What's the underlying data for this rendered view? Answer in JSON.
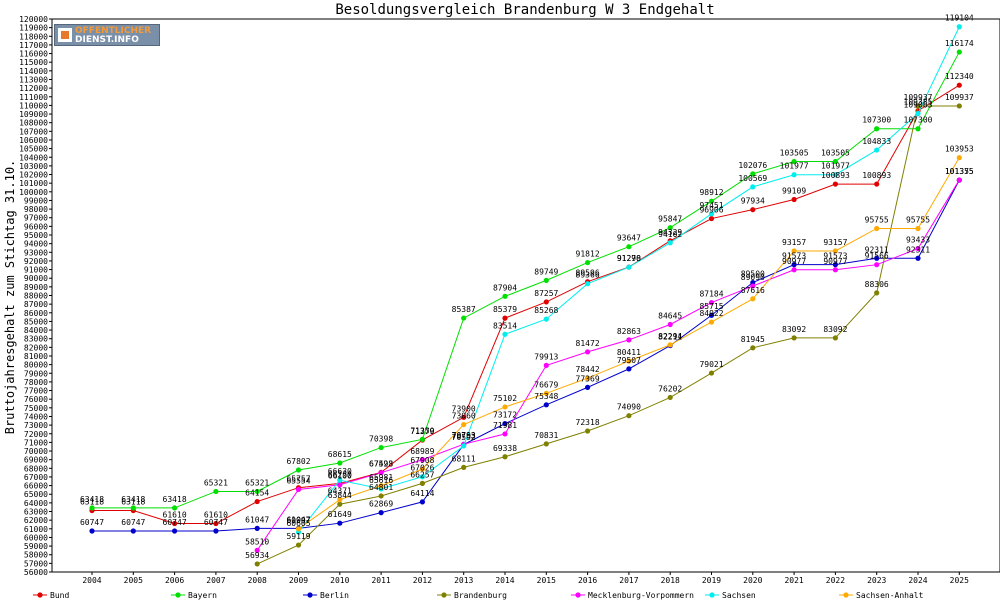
{
  "logo": {
    "line1": "OFFENTLICHER",
    "line2": "DIENST.INFO"
  },
  "chart_data": {
    "type": "line",
    "title": "Besoldungsvergleich Brandenburg W 3 Endgehalt",
    "xlabel": "",
    "ylabel": "Bruttojahresgehalt zum Stichtag 31.10.",
    "ylim": [
      56000,
      120000
    ],
    "ytick_step": 1000,
    "grid": false,
    "legend_position": "bottom",
    "x": [
      2004,
      2005,
      2006,
      2007,
      2008,
      2009,
      2010,
      2011,
      2012,
      2013,
      2014,
      2015,
      2016,
      2017,
      2018,
      2019,
      2020,
      2021,
      2022,
      2023,
      2024,
      2025
    ],
    "series": [
      {
        "name": "Bund",
        "color": "#e00000",
        "values": [
          63118,
          63118,
          61610,
          61610,
          64154,
          65757,
          66250,
          67528,
          71279,
          73900,
          85379,
          87257,
          89596,
          91290,
          94329,
          96906,
          97934,
          99109,
          100893,
          100893,
          109385,
          112340
        ]
      },
      {
        "name": "Bayern",
        "color": "#00e000",
        "values": [
          63418,
          63418,
          63418,
          65321,
          65321,
          67802,
          68615,
          70398,
          71350,
          85387,
          87904,
          89749,
          91812,
          93647,
          95847,
          98912,
          102076,
          103505,
          103505,
          107300,
          107300,
          116174
        ]
      },
      {
        "name": "Berlin",
        "color": "#0000cc",
        "values": [
          60747,
          60747,
          60747,
          60747,
          61047,
          61047,
          61649,
          62869,
          64114,
          70753,
          73172,
          75348,
          77369,
          79507,
          82211,
          85715,
          89500,
          91573,
          91573,
          92311,
          92311,
          101355
        ]
      },
      {
        "name": "Brandenburg",
        "color": "#808000",
        "values": [
          null,
          null,
          null,
          null,
          56934,
          59119,
          63844,
          64801,
          66257,
          68111,
          69338,
          70831,
          72318,
          74090,
          76202,
          79021,
          81945,
          83092,
          83092,
          88306,
          109937,
          109937
        ]
      },
      {
        "name": "Mecklenburg-Vorpommern",
        "color": "#ff00ff",
        "values": [
          null,
          null,
          null,
          null,
          58510,
          65554,
          66100,
          67493,
          68989,
          70793,
          71981,
          79913,
          81472,
          82863,
          84645,
          87184,
          89090,
          90977,
          90977,
          91566,
          93433,
          101375
        ]
      },
      {
        "name": "Sachsen",
        "color": "#00eeee",
        "values": [
          null,
          null,
          null,
          null,
          null,
          60605,
          66630,
          65616,
          67026,
          70592,
          83514,
          85268,
          89366,
          91278,
          94102,
          97451,
          100569,
          101977,
          101977,
          104833,
          109063,
          119104
        ]
      },
      {
        "name": "Sachsen-Anhalt",
        "color": "#ffaa00",
        "values": [
          null,
          null,
          null,
          null,
          null,
          60997,
          64371,
          65981,
          67908,
          73060,
          75102,
          76679,
          78442,
          80411,
          82294,
          84922,
          87616,
          93157,
          93157,
          95755,
          95755,
          103953
        ]
      }
    ]
  }
}
